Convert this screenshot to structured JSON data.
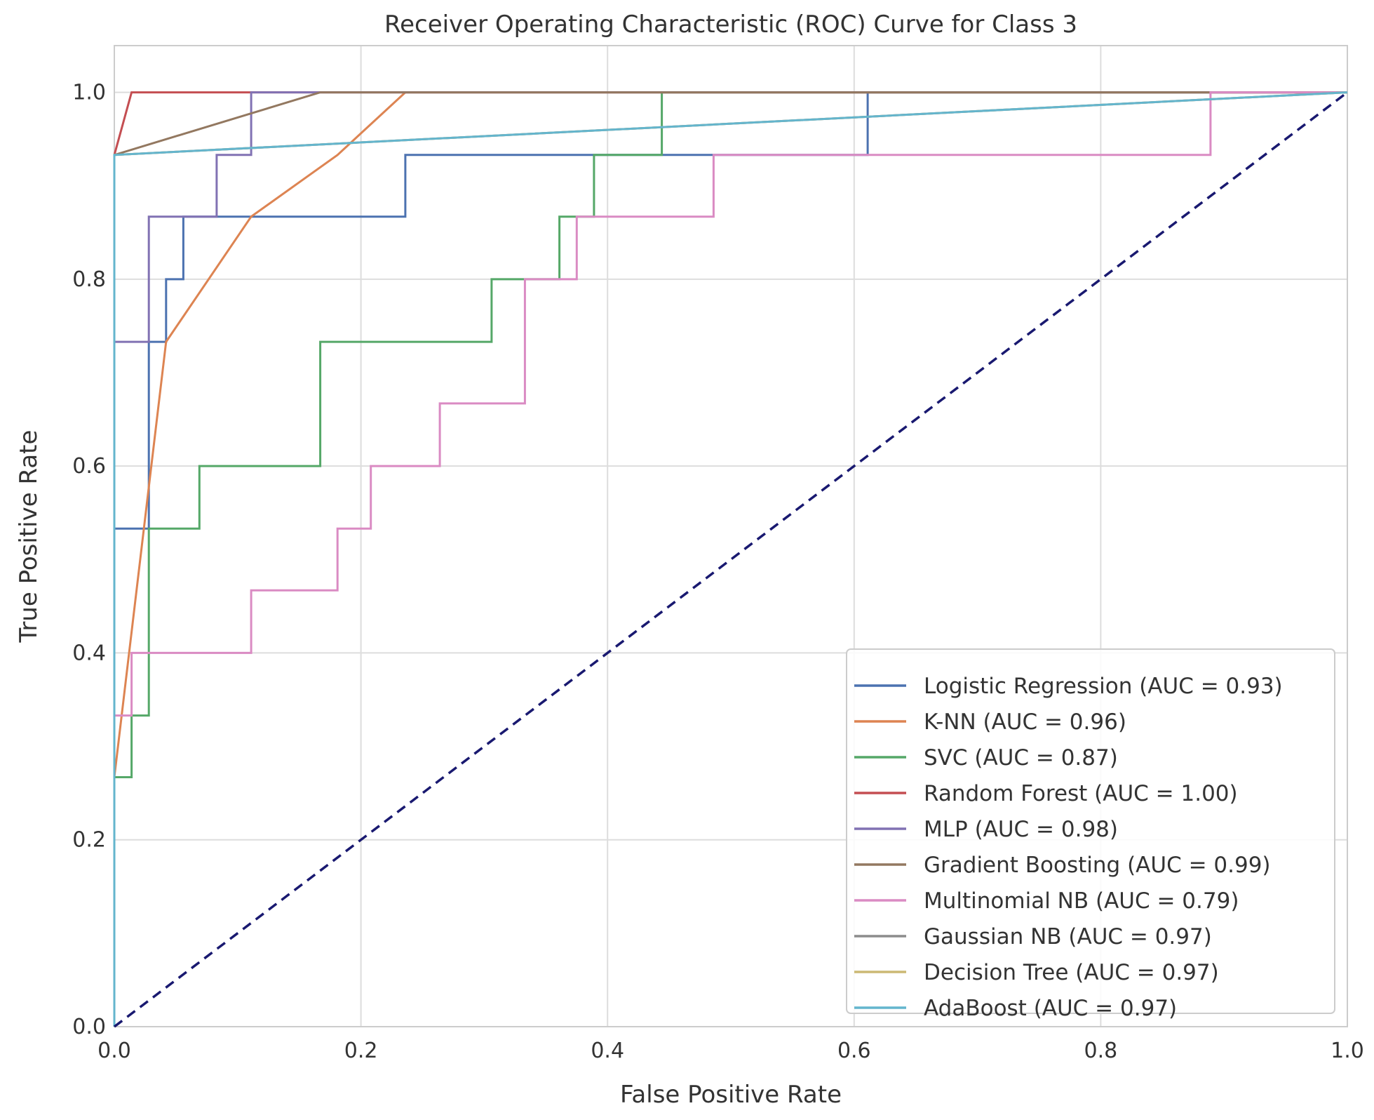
{
  "chart_data": {
    "type": "line",
    "title": "Receiver Operating Characteristic (ROC) Curve for Class 3",
    "xlabel": "False Positive Rate",
    "ylabel": "True Positive Rate",
    "xlim": [
      0,
      1
    ],
    "ylim": [
      0,
      1.05
    ],
    "x_ticks": [
      "0.0",
      "0.2",
      "0.4",
      "0.6",
      "0.8",
      "1.0"
    ],
    "y_ticks": [
      "0.0",
      "0.2",
      "0.4",
      "0.6",
      "0.8",
      "1.0"
    ],
    "grid": true,
    "legend_position": "lower right",
    "series": [
      {
        "name": "Logistic Regression (AUC = 0.93)",
        "color": "#4c72b0",
        "x": [
          0,
          0,
          0.028,
          0.028,
          0.042,
          0.042,
          0.056,
          0.056,
          0.236,
          0.236,
          0.611,
          0.611,
          1
        ],
        "y": [
          0,
          0.533,
          0.533,
          0.733,
          0.733,
          0.8,
          0.8,
          0.867,
          0.867,
          0.933,
          0.933,
          1,
          1
        ]
      },
      {
        "name": "K-NN (AUC = 0.96)",
        "color": "#dd8452",
        "x": [
          0,
          0.042,
          0.111,
          0.181,
          0.236,
          1
        ],
        "y": [
          0.267,
          0.733,
          0.867,
          0.933,
          1,
          1
        ]
      },
      {
        "name": "SVC (AUC = 0.87)",
        "color": "#55a868",
        "x": [
          0,
          0,
          0.014,
          0.014,
          0.028,
          0.028,
          0.069,
          0.069,
          0.167,
          0.167,
          0.306,
          0.306,
          0.361,
          0.361,
          0.389,
          0.389,
          0.444,
          0.444,
          1
        ],
        "y": [
          0,
          0.267,
          0.267,
          0.333,
          0.333,
          0.533,
          0.533,
          0.6,
          0.6,
          0.733,
          0.733,
          0.8,
          0.8,
          0.867,
          0.867,
          0.933,
          0.933,
          1,
          1
        ]
      },
      {
        "name": "Random Forest (AUC = 1.00)",
        "color": "#c44e52",
        "x": [
          0,
          0,
          0.014,
          1
        ],
        "y": [
          0,
          0.933,
          1,
          1
        ]
      },
      {
        "name": "MLP (AUC = 0.98)",
        "color": "#8172b3",
        "x": [
          0,
          0,
          0.028,
          0.028,
          0.083,
          0.083,
          0.111,
          0.111,
          1
        ],
        "y": [
          0,
          0.733,
          0.733,
          0.867,
          0.867,
          0.933,
          0.933,
          1,
          1
        ]
      },
      {
        "name": "Gradient Boosting (AUC = 0.99)",
        "color": "#937860",
        "x": [
          0,
          0,
          0.167,
          1
        ],
        "y": [
          0,
          0.933,
          1,
          1
        ]
      },
      {
        "name": "Multinomial NB (AUC = 0.79)",
        "color": "#da8bc3",
        "x": [
          0,
          0,
          0.014,
          0.014,
          0.111,
          0.111,
          0.181,
          0.181,
          0.208,
          0.208,
          0.264,
          0.264,
          0.333,
          0.333,
          0.375,
          0.375,
          0.486,
          0.486,
          0.889,
          0.889,
          1
        ],
        "y": [
          0,
          0.333,
          0.333,
          0.4,
          0.4,
          0.467,
          0.467,
          0.533,
          0.533,
          0.6,
          0.6,
          0.667,
          0.667,
          0.8,
          0.8,
          0.867,
          0.867,
          0.933,
          0.933,
          1,
          1
        ]
      },
      {
        "name": "Gaussian NB (AUC = 0.97)",
        "color": "#8c8c8c",
        "x": [
          0,
          0,
          1
        ],
        "y": [
          0,
          0.933,
          1
        ]
      },
      {
        "name": "Decision Tree (AUC = 0.97)",
        "color": "#ccb974",
        "x": [
          0,
          0,
          1
        ],
        "y": [
          0,
          0.933,
          1
        ]
      },
      {
        "name": "AdaBoost (AUC = 0.97)",
        "color": "#64b5cd",
        "x": [
          0,
          0,
          1
        ],
        "y": [
          0,
          0.933,
          1
        ]
      }
    ],
    "reference_line": {
      "x": [
        0,
        1
      ],
      "y": [
        0,
        1
      ],
      "color": "#191970",
      "style": "dashed"
    }
  }
}
